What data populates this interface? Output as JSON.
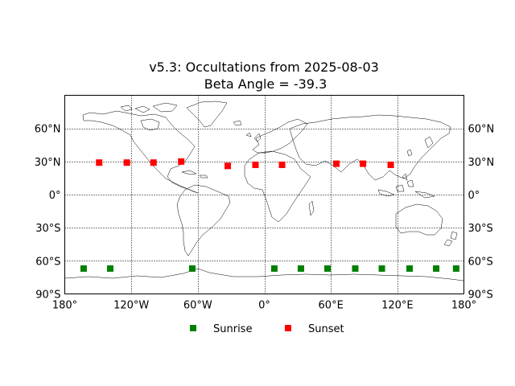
{
  "chart_data": {
    "type": "scatter",
    "title": "v5.3: Occultations from 2025-08-03",
    "subtitle": "Beta Angle = -39.3",
    "xlim": [
      -180,
      180
    ],
    "ylim": [
      -90,
      90
    ],
    "grid": true,
    "legend_placement": "bottom-center",
    "x_tick_values": [
      -180,
      -120,
      -60,
      0,
      60,
      120,
      180
    ],
    "x_tick_labels": [
      "180°",
      "120°W",
      "60°W",
      "0°",
      "60°E",
      "120°E",
      "180°"
    ],
    "y_tick_values": [
      60,
      30,
      0,
      -30,
      -60,
      -90
    ],
    "y_tick_labels": [
      "60°N",
      "30°N",
      "0°",
      "30°S",
      "60°S",
      "90°S"
    ],
    "series": [
      {
        "name": "Sunrise",
        "color": "#008000",
        "marker": "square",
        "points": [
          {
            "lon": -163,
            "lat": -67
          },
          {
            "lon": -139,
            "lat": -67
          },
          {
            "lon": -65,
            "lat": -67
          },
          {
            "lon": 9,
            "lat": -67
          },
          {
            "lon": 33,
            "lat": -67
          },
          {
            "lon": 57,
            "lat": -67
          },
          {
            "lon": 82,
            "lat": -67
          },
          {
            "lon": 106,
            "lat": -67
          },
          {
            "lon": 131,
            "lat": -67
          },
          {
            "lon": 155,
            "lat": -67
          },
          {
            "lon": 173,
            "lat": -67
          }
        ]
      },
      {
        "name": "Sunset",
        "color": "#ff0000",
        "marker": "square",
        "points": [
          {
            "lon": -149,
            "lat": 29
          },
          {
            "lon": -124,
            "lat": 29
          },
          {
            "lon": -100,
            "lat": 29
          },
          {
            "lon": -75,
            "lat": 30
          },
          {
            "lon": -33,
            "lat": 26
          },
          {
            "lon": -8,
            "lat": 27
          },
          {
            "lon": 16,
            "lat": 27
          },
          {
            "lon": 65,
            "lat": 28
          },
          {
            "lon": 89,
            "lat": 28
          },
          {
            "lon": 114,
            "lat": 27
          }
        ]
      }
    ]
  }
}
